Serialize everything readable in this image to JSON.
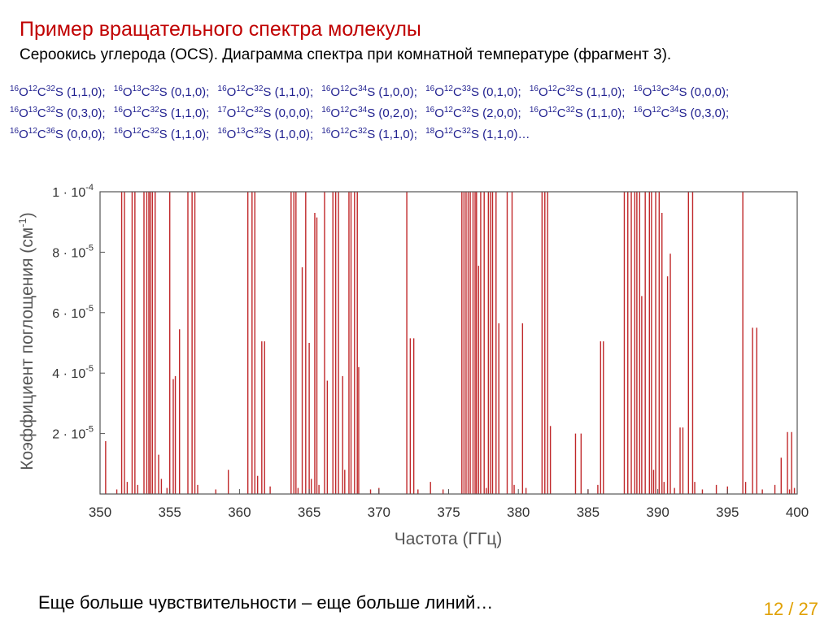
{
  "slide": {
    "title": "Пример вращательного спектра молекулы",
    "subtitle": "Сероокись углерода (OCS).  Диаграмма спектра при комнатной температуре (фрагмент 3).",
    "footer_note": "Еще больше чувствительности – еще больше линий…",
    "page_number": "12 / 27"
  },
  "isotopologues": [
    {
      "parts": [
        {
          "sup": "16"
        },
        {
          "t": "O"
        },
        {
          "sup": "12"
        },
        {
          "t": "C"
        },
        {
          "sup": "32"
        },
        {
          "t": "S (1,1,0);"
        }
      ]
    },
    {
      "parts": [
        {
          "sup": "16"
        },
        {
          "t": "O"
        },
        {
          "sup": "13"
        },
        {
          "t": "C"
        },
        {
          "sup": "32"
        },
        {
          "t": "S (0,1,0);"
        }
      ]
    },
    {
      "parts": [
        {
          "sup": "16"
        },
        {
          "t": "O"
        },
        {
          "sup": "12"
        },
        {
          "t": "C"
        },
        {
          "sup": "32"
        },
        {
          "t": "S (1,1,0);"
        }
      ]
    },
    {
      "parts": [
        {
          "sup": "16"
        },
        {
          "t": "O"
        },
        {
          "sup": "12"
        },
        {
          "t": "C"
        },
        {
          "sup": "34"
        },
        {
          "t": "S (1,0,0);"
        }
      ]
    },
    {
      "parts": [
        {
          "sup": "16"
        },
        {
          "t": "O"
        },
        {
          "sup": "12"
        },
        {
          "t": "C"
        },
        {
          "sup": "33"
        },
        {
          "t": "S (0,1,0);"
        }
      ]
    },
    {
      "parts": [
        {
          "sup": "16"
        },
        {
          "t": "O"
        },
        {
          "sup": "12"
        },
        {
          "t": "C"
        },
        {
          "sup": "32"
        },
        {
          "t": "S (1,1,0);"
        }
      ]
    },
    {
      "parts": [
        {
          "sup": "16"
        },
        {
          "t": "O"
        },
        {
          "sup": "13"
        },
        {
          "t": "C"
        },
        {
          "sup": "34"
        },
        {
          "t": "S (0,0,0);"
        }
      ]
    },
    {
      "parts": [
        {
          "sup": "16"
        },
        {
          "t": "O"
        },
        {
          "sup": "13"
        },
        {
          "t": "C"
        },
        {
          "sup": "32"
        },
        {
          "t": "S (0,3,0);"
        }
      ]
    },
    {
      "parts": [
        {
          "sup": "16"
        },
        {
          "t": "O"
        },
        {
          "sup": "12"
        },
        {
          "t": "C"
        },
        {
          "sup": "32"
        },
        {
          "t": "S (1,1,0);"
        }
      ]
    },
    {
      "parts": [
        {
          "sup": "17"
        },
        {
          "t": "O"
        },
        {
          "sup": "12"
        },
        {
          "t": "C"
        },
        {
          "sup": "32"
        },
        {
          "t": "S (0,0,0);"
        }
      ]
    },
    {
      "parts": [
        {
          "sup": "16"
        },
        {
          "t": "O"
        },
        {
          "sup": "12"
        },
        {
          "t": "C"
        },
        {
          "sup": "34"
        },
        {
          "t": "S (0,2,0);"
        }
      ]
    },
    {
      "parts": [
        {
          "sup": "16"
        },
        {
          "t": "O"
        },
        {
          "sup": "12"
        },
        {
          "t": "C"
        },
        {
          "sup": "32"
        },
        {
          "t": "S (2,0,0);"
        }
      ]
    },
    {
      "parts": [
        {
          "sup": "16"
        },
        {
          "t": "O"
        },
        {
          "sup": "12"
        },
        {
          "t": "C"
        },
        {
          "sup": "32"
        },
        {
          "t": "S (1,1,0);"
        }
      ]
    },
    {
      "parts": [
        {
          "sup": "16"
        },
        {
          "t": "O"
        },
        {
          "sup": "12"
        },
        {
          "t": "C"
        },
        {
          "sup": "34"
        },
        {
          "t": "S (0,3,0);"
        }
      ]
    },
    {
      "parts": [
        {
          "sup": "16"
        },
        {
          "t": "O"
        },
        {
          "sup": "12"
        },
        {
          "t": "C"
        },
        {
          "sup": "36"
        },
        {
          "t": "S (0,0,0);"
        }
      ]
    },
    {
      "parts": [
        {
          "sup": "16"
        },
        {
          "t": "O"
        },
        {
          "sup": "12"
        },
        {
          "t": "C"
        },
        {
          "sup": "32"
        },
        {
          "t": "S (1,1,0);"
        }
      ]
    },
    {
      "parts": [
        {
          "sup": "16"
        },
        {
          "t": "O"
        },
        {
          "sup": "13"
        },
        {
          "t": "C"
        },
        {
          "sup": "32"
        },
        {
          "t": "S (1,0,0);"
        }
      ]
    },
    {
      "parts": [
        {
          "sup": "16"
        },
        {
          "t": "O"
        },
        {
          "sup": "12"
        },
        {
          "t": "C"
        },
        {
          "sup": "32"
        },
        {
          "t": "S (1,1,0);"
        }
      ]
    },
    {
      "parts": [
        {
          "sup": "18"
        },
        {
          "t": "O"
        },
        {
          "sup": "12"
        },
        {
          "t": "C"
        },
        {
          "sup": "32"
        },
        {
          "t": "S (1,1,0)…"
        }
      ]
    }
  ],
  "colors": {
    "title": "#c00000",
    "isotopologues": "#1f1f8f",
    "spectrum_line": "#c0282a",
    "page_number": "#e0a000"
  },
  "chart_data": {
    "type": "line",
    "style": "stick spectrum",
    "xlabel": "Частота (ГГц)",
    "ylabel": "Коэффициент поглощения  (см",
    "ylabel_unit_sup": "-1",
    "ylabel_close": ")",
    "xlim": [
      350,
      400
    ],
    "ylim": [
      0,
      0.0001
    ],
    "clipped_at_top": true,
    "x_ticks": [
      350,
      355,
      360,
      365,
      370,
      375,
      380,
      385,
      390,
      395,
      400
    ],
    "y_ticks": [
      {
        "value": 2e-05,
        "mant": "2 · 10",
        "exp": "-5"
      },
      {
        "value": 4e-05,
        "mant": "4 · 10",
        "exp": "-5"
      },
      {
        "value": 6e-05,
        "mant": "6 · 10",
        "exp": "-5"
      },
      {
        "value": 8e-05,
        "mant": "8 · 10",
        "exp": "-5"
      },
      {
        "value": 0.0001,
        "mant": "1 · 10",
        "exp": "-4"
      }
    ],
    "grid": false,
    "lines": [
      {
        "x": 350.4,
        "y": 1.75e-05
      },
      {
        "x": 351.2,
        "y": 1.5e-06
      },
      {
        "x": 351.55,
        "y": 0.0001
      },
      {
        "x": 351.75,
        "y": 0.0001
      },
      {
        "x": 351.95,
        "y": 4e-06
      },
      {
        "x": 352.3,
        "y": 0.0001
      },
      {
        "x": 352.5,
        "y": 0.0001
      },
      {
        "x": 352.7,
        "y": 3e-06
      },
      {
        "x": 353.15,
        "y": 0.0001
      },
      {
        "x": 353.35,
        "y": 0.0001
      },
      {
        "x": 353.5,
        "y": 0.0001
      },
      {
        "x": 353.6,
        "y": 0.0001
      },
      {
        "x": 353.75,
        "y": 0.0001
      },
      {
        "x": 353.95,
        "y": 0.0001
      },
      {
        "x": 354.2,
        "y": 1.3e-05
      },
      {
        "x": 354.4,
        "y": 5e-06
      },
      {
        "x": 354.8,
        "y": 2e-06
      },
      {
        "x": 355.0,
        "y": 0.0001
      },
      {
        "x": 355.25,
        "y": 3.8e-05
      },
      {
        "x": 355.4,
        "y": 3.9e-05
      },
      {
        "x": 355.7,
        "y": 5.45e-05
      },
      {
        "x": 356.3,
        "y": 0.0001
      },
      {
        "x": 356.6,
        "y": 0.0001
      },
      {
        "x": 356.8,
        "y": 0.0001
      },
      {
        "x": 357.0,
        "y": 3e-06
      },
      {
        "x": 358.3,
        "y": 1.5e-06
      },
      {
        "x": 359.2,
        "y": 8e-06
      },
      {
        "x": 360.6,
        "y": 0.0001
      },
      {
        "x": 360.9,
        "y": 0.0001
      },
      {
        "x": 361.1,
        "y": 0.0001
      },
      {
        "x": 361.3,
        "y": 6e-06
      },
      {
        "x": 361.6,
        "y": 5.05e-05
      },
      {
        "x": 361.8,
        "y": 5.05e-05
      },
      {
        "x": 362.2,
        "y": 2.5e-06
      },
      {
        "x": 363.7,
        "y": 0.0001
      },
      {
        "x": 363.9,
        "y": 0.0001
      },
      {
        "x": 364.05,
        "y": 0.0001
      },
      {
        "x": 364.2,
        "y": 2e-06
      },
      {
        "x": 364.5,
        "y": 7.5e-05
      },
      {
        "x": 364.75,
        "y": 0.0001
      },
      {
        "x": 365.0,
        "y": 5e-05
      },
      {
        "x": 365.15,
        "y": 5e-06
      },
      {
        "x": 365.4,
        "y": 9.3e-05
      },
      {
        "x": 365.55,
        "y": 9.15e-05
      },
      {
        "x": 365.7,
        "y": 3e-06
      },
      {
        "x": 366.1,
        "y": 0.0001
      },
      {
        "x": 366.3,
        "y": 3.75e-05
      },
      {
        "x": 366.7,
        "y": 0.0001
      },
      {
        "x": 366.9,
        "y": 0.0001
      },
      {
        "x": 367.1,
        "y": 0.0001
      },
      {
        "x": 367.4,
        "y": 3.9e-05
      },
      {
        "x": 367.55,
        "y": 8e-06
      },
      {
        "x": 367.85,
        "y": 0.0001
      },
      {
        "x": 368.0,
        "y": 0.0001
      },
      {
        "x": 368.25,
        "y": 0.0001
      },
      {
        "x": 368.45,
        "y": 0.0001
      },
      {
        "x": 368.55,
        "y": 4.2e-05
      },
      {
        "x": 369.4,
        "y": 1.5e-06
      },
      {
        "x": 370.0,
        "y": 2e-06
      },
      {
        "x": 372.0,
        "y": 0.0001
      },
      {
        "x": 372.25,
        "y": 5.15e-05
      },
      {
        "x": 372.5,
        "y": 5.15e-05
      },
      {
        "x": 372.8,
        "y": 1.5e-06
      },
      {
        "x": 373.7,
        "y": 4e-06
      },
      {
        "x": 374.6,
        "y": 1.5e-06
      },
      {
        "x": 375.95,
        "y": 0.0001
      },
      {
        "x": 376.1,
        "y": 0.0001
      },
      {
        "x": 376.25,
        "y": 0.0001
      },
      {
        "x": 376.4,
        "y": 0.0001
      },
      {
        "x": 376.55,
        "y": 0.0001
      },
      {
        "x": 376.75,
        "y": 0.0001
      },
      {
        "x": 376.9,
        "y": 0.0001
      },
      {
        "x": 377.0,
        "y": 0.0001
      },
      {
        "x": 377.15,
        "y": 7.55e-05
      },
      {
        "x": 377.3,
        "y": 0.0001
      },
      {
        "x": 377.55,
        "y": 0.0001
      },
      {
        "x": 377.7,
        "y": 2e-06
      },
      {
        "x": 377.85,
        "y": 0.0001
      },
      {
        "x": 378.0,
        "y": 0.0001
      },
      {
        "x": 378.15,
        "y": 0.0001
      },
      {
        "x": 378.4,
        "y": 0.0001
      },
      {
        "x": 378.6,
        "y": 5.65e-05
      },
      {
        "x": 379.2,
        "y": 0.0001
      },
      {
        "x": 379.55,
        "y": 0.0001
      },
      {
        "x": 379.7,
        "y": 3e-06
      },
      {
        "x": 380.3,
        "y": 5.65e-05
      },
      {
        "x": 380.55,
        "y": 2e-06
      },
      {
        "x": 381.7,
        "y": 0.0001
      },
      {
        "x": 381.9,
        "y": 0.0001
      },
      {
        "x": 382.1,
        "y": 0.0001
      },
      {
        "x": 382.3,
        "y": 2.25e-05
      },
      {
        "x": 384.1,
        "y": 2e-05
      },
      {
        "x": 384.5,
        "y": 2e-05
      },
      {
        "x": 385.0,
        "y": 1.5e-06
      },
      {
        "x": 385.7,
        "y": 3e-06
      },
      {
        "x": 385.9,
        "y": 5.05e-05
      },
      {
        "x": 386.1,
        "y": 5.05e-05
      },
      {
        "x": 387.6,
        "y": 0.0001
      },
      {
        "x": 387.85,
        "y": 0.0001
      },
      {
        "x": 388.1,
        "y": 0.0001
      },
      {
        "x": 388.35,
        "y": 0.0001
      },
      {
        "x": 388.5,
        "y": 0.0001
      },
      {
        "x": 388.7,
        "y": 0.0001
      },
      {
        "x": 388.85,
        "y": 6.55e-05
      },
      {
        "x": 389.1,
        "y": 0.0001
      },
      {
        "x": 389.4,
        "y": 0.0001
      },
      {
        "x": 389.55,
        "y": 0.0001
      },
      {
        "x": 389.7,
        "y": 8e-06
      },
      {
        "x": 389.85,
        "y": 0.0001
      },
      {
        "x": 390.1,
        "y": 0.0001
      },
      {
        "x": 390.3,
        "y": 9.3e-05
      },
      {
        "x": 390.45,
        "y": 4e-06
      },
      {
        "x": 390.7,
        "y": 7.2e-05
      },
      {
        "x": 390.9,
        "y": 7.95e-05
      },
      {
        "x": 391.2,
        "y": 2e-06
      },
      {
        "x": 391.6,
        "y": 2.2e-05
      },
      {
        "x": 391.8,
        "y": 2.2e-05
      },
      {
        "x": 392.2,
        "y": 0.0001
      },
      {
        "x": 392.5,
        "y": 0.0001
      },
      {
        "x": 392.65,
        "y": 4e-06
      },
      {
        "x": 393.2,
        "y": 1.5e-06
      },
      {
        "x": 394.2,
        "y": 3e-06
      },
      {
        "x": 395.0,
        "y": 2.5e-06
      },
      {
        "x": 396.1,
        "y": 0.0001
      },
      {
        "x": 396.3,
        "y": 4e-06
      },
      {
        "x": 396.8,
        "y": 5.5e-05
      },
      {
        "x": 397.1,
        "y": 5.5e-05
      },
      {
        "x": 397.5,
        "y": 1.5e-06
      },
      {
        "x": 398.4,
        "y": 3e-06
      },
      {
        "x": 398.85,
        "y": 1.2e-05
      },
      {
        "x": 399.3,
        "y": 2.05e-05
      },
      {
        "x": 399.45,
        "y": 1.5e-06
      },
      {
        "x": 399.6,
        "y": 2.05e-05
      },
      {
        "x": 399.8,
        "y": 2e-06
      }
    ]
  }
}
